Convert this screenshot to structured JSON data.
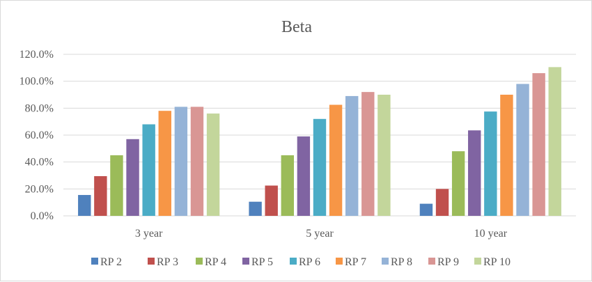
{
  "chart_data": {
    "type": "bar",
    "title": "Beta",
    "xlabel": "",
    "ylabel": "",
    "categories": [
      "3 year",
      "5 year",
      "10 year"
    ],
    "ylim": [
      0,
      120
    ],
    "yticks": [
      "0.0%",
      "20.0%",
      "40.0%",
      "60.0%",
      "80.0%",
      "100.0%",
      "120.0%"
    ],
    "grid": true,
    "legend_position": "bottom",
    "series": [
      {
        "name": "RP 2",
        "color": "#4f81bd",
        "values": [
          15.5,
          10.5,
          9.0
        ]
      },
      {
        "name": "RP 3",
        "color": "#c0504d",
        "values": [
          29.5,
          22.5,
          20.0
        ]
      },
      {
        "name": "RP 4",
        "color": "#9bbb59",
        "values": [
          45.0,
          45.0,
          48.0
        ]
      },
      {
        "name": "RP 5",
        "color": "#8064a2",
        "values": [
          57.0,
          59.0,
          63.5
        ]
      },
      {
        "name": "RP 6",
        "color": "#4bacc6",
        "values": [
          68.0,
          72.0,
          77.5
        ]
      },
      {
        "name": "RP 7",
        "color": "#f79646",
        "values": [
          78.0,
          82.5,
          90.0
        ]
      },
      {
        "name": "RP 8",
        "color": "#95b3d7",
        "values": [
          81.0,
          89.0,
          98.0
        ]
      },
      {
        "name": "RP 9",
        "color": "#d99694",
        "values": [
          81.0,
          92.0,
          106.0
        ]
      },
      {
        "name": "RP 10",
        "color": "#c3d69b",
        "values": [
          76.0,
          90.0,
          110.5
        ]
      }
    ]
  }
}
